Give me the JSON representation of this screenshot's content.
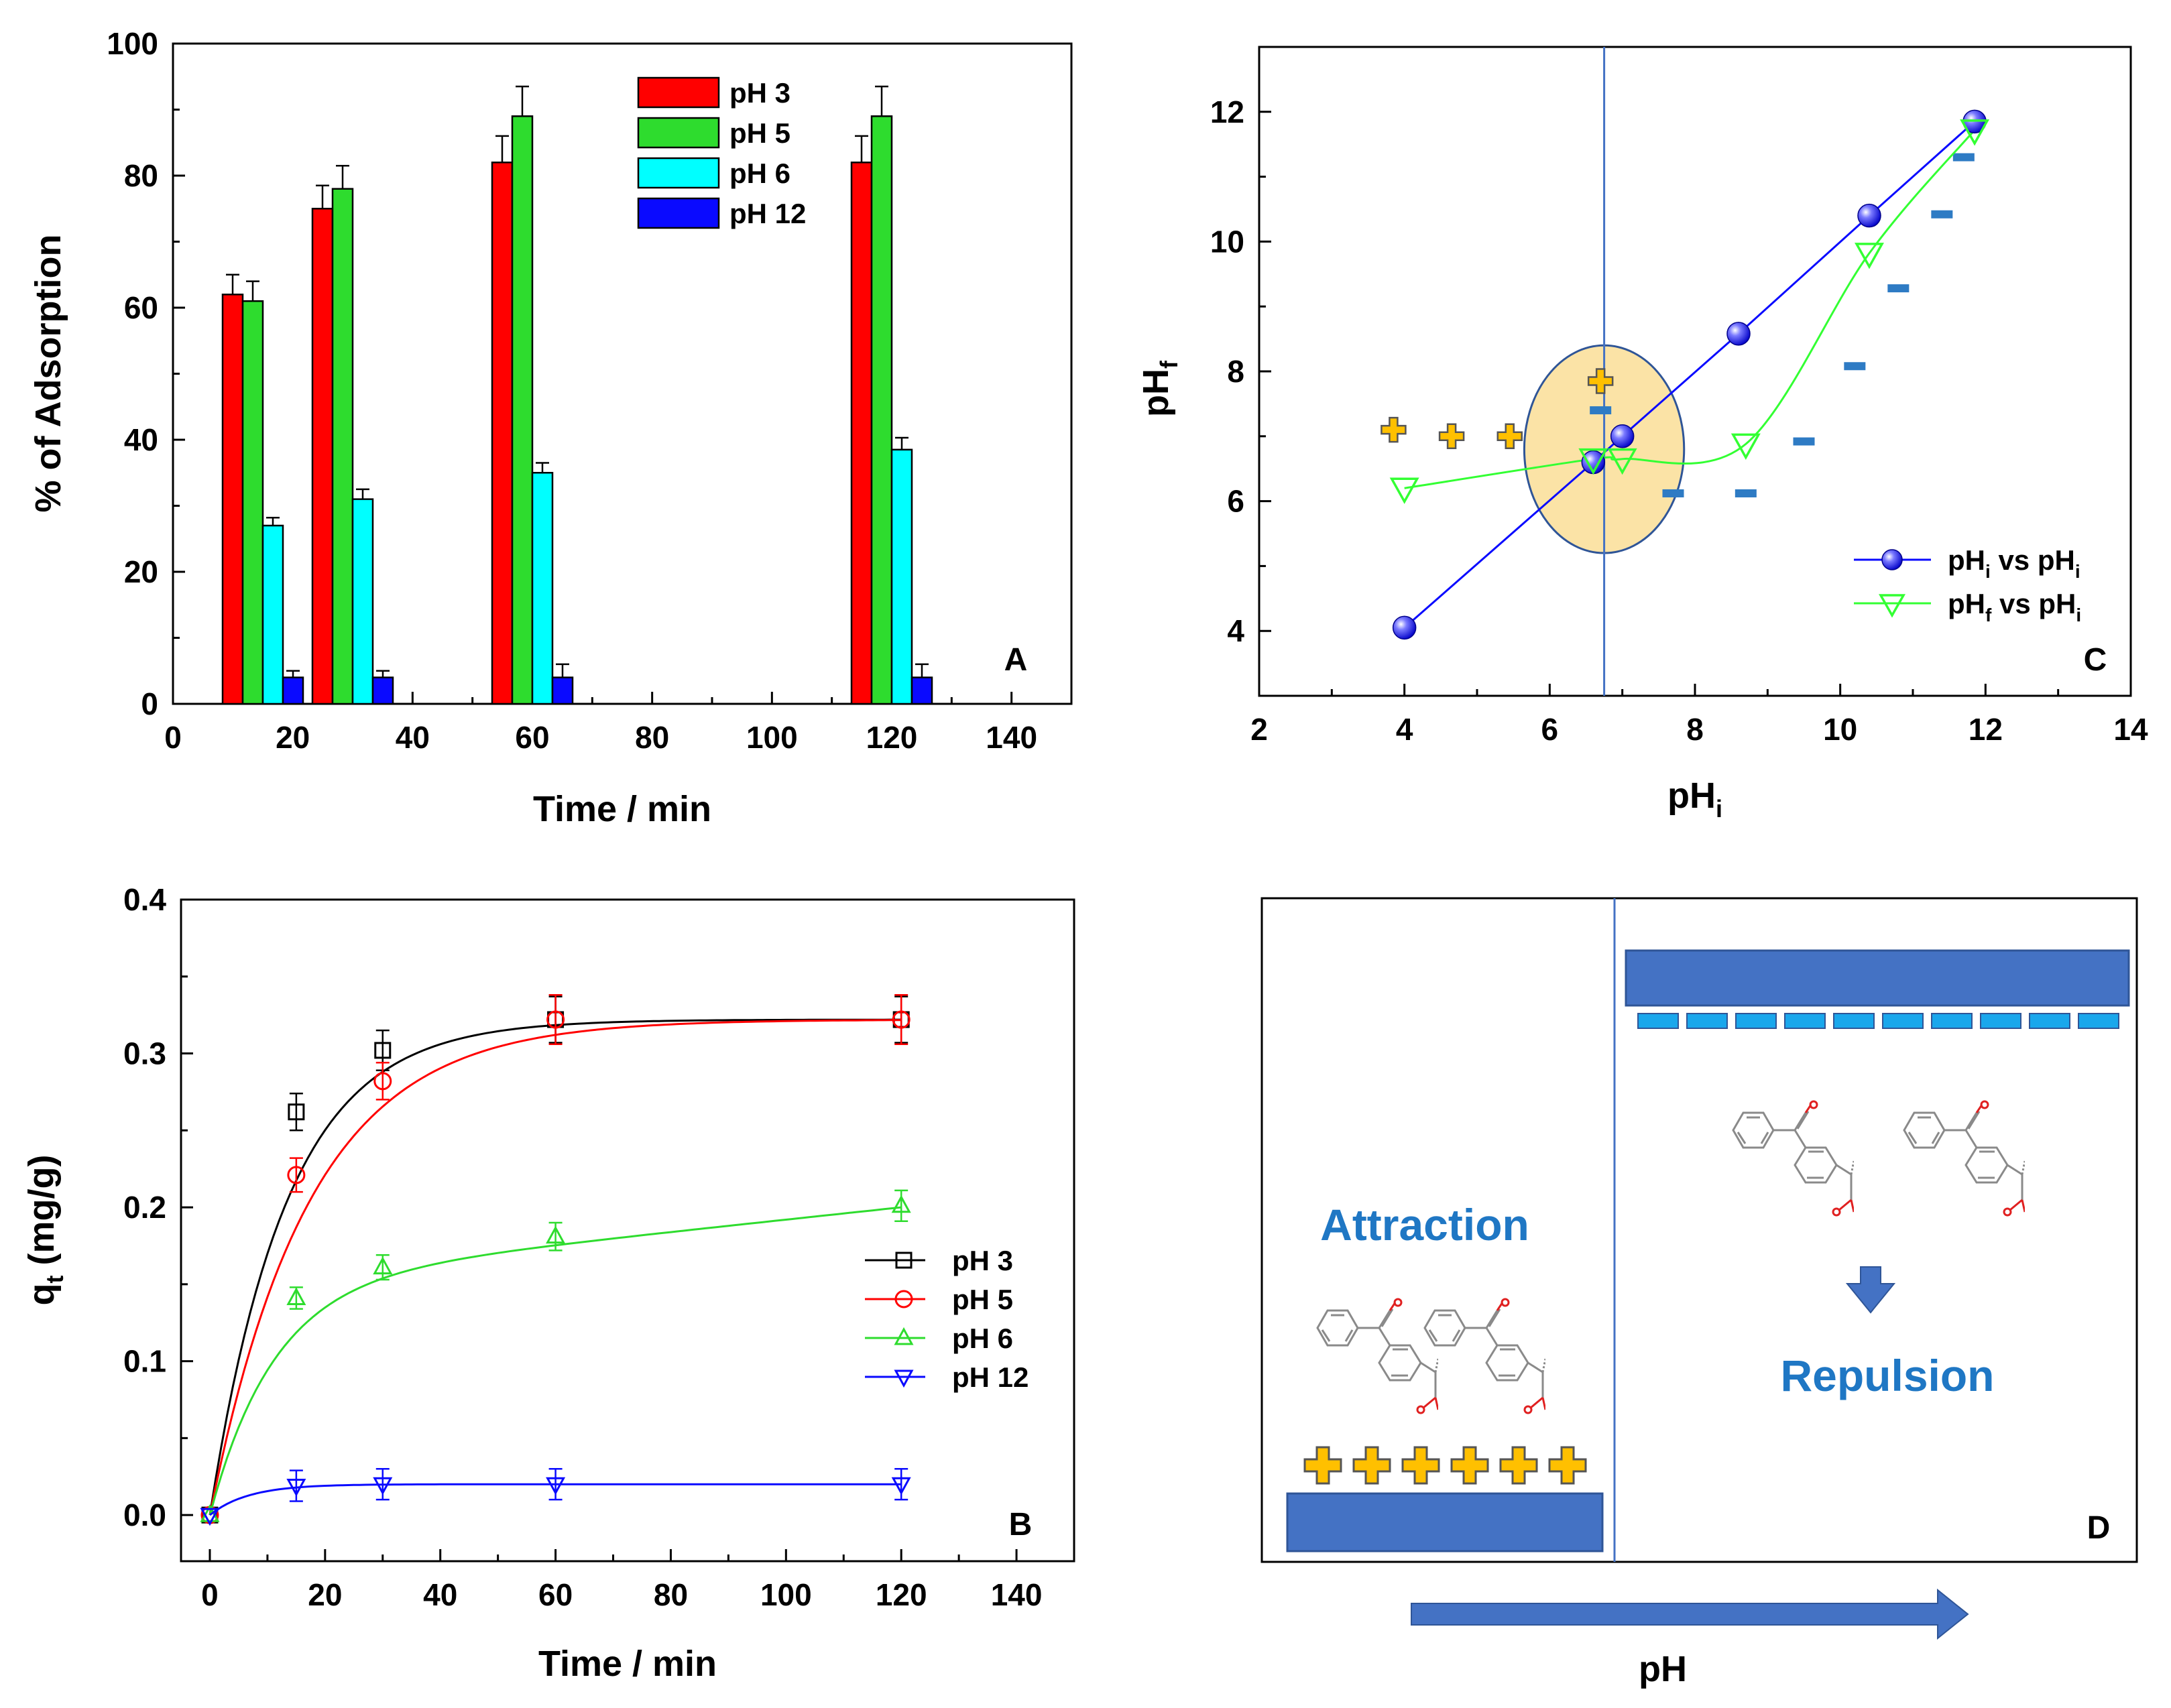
{
  "colors": {
    "red": "#ff0000",
    "green": "#2edc2e",
    "cyan": "#00ffff",
    "blue": "#0a0aff",
    "slate": "#4472c4",
    "orange": "#ffc000",
    "ellipse": "#fbe3a6",
    "text_blue": "#1f77c4",
    "curve_green": "#33ff33",
    "dash_blue": "#2e7bc4",
    "neg_cyan": "#1aa7ec"
  },
  "chart_data": [
    {
      "id": "A",
      "type": "bar",
      "panel_label": "A",
      "xlabel": "Time / min",
      "ylabel": "% of Adsorption",
      "xlim": [
        0,
        150
      ],
      "ylim": [
        0,
        100
      ],
      "xticks": [
        0,
        20,
        40,
        60,
        80,
        100,
        120,
        140
      ],
      "yticks": [
        0,
        20,
        40,
        60,
        80,
        100
      ],
      "legend_position": "top-right",
      "x": [
        15,
        30,
        60,
        120
      ],
      "series": [
        {
          "name": "pH   3",
          "color": "#ff0000",
          "values": [
            62,
            75,
            82,
            82
          ],
          "errors": [
            3,
            3.5,
            4,
            4
          ]
        },
        {
          "name": "pH   5",
          "color": "#2edc2e",
          "values": [
            61,
            78,
            89,
            89
          ],
          "errors": [
            3,
            3.5,
            4.5,
            4.5
          ]
        },
        {
          "name": "pH   6",
          "color": "#00ffff",
          "values": [
            27,
            31,
            35,
            38.5
          ],
          "errors": [
            1.2,
            1.5,
            1.5,
            1.8
          ]
        },
        {
          "name": "pH 12",
          "color": "#0a0aff",
          "values": [
            4,
            4,
            4,
            4
          ],
          "errors": [
            1,
            1,
            2,
            2
          ]
        }
      ]
    },
    {
      "id": "B",
      "type": "scatter",
      "panel_label": "B",
      "xlabel": "Time / min",
      "ylabel_main": "q",
      "ylabel_sub": "t",
      "ylabel_rest": " (mg/g)",
      "xlim": [
        -5,
        150
      ],
      "ylim": [
        -0.03,
        0.4
      ],
      "xticks": [
        0,
        20,
        40,
        60,
        80,
        100,
        120,
        140
      ],
      "yticks": [
        0.0,
        0.1,
        0.2,
        0.3,
        0.4
      ],
      "ytick_labels": [
        "0.0",
        "0.1",
        "0.2",
        "0.3",
        "0.4"
      ],
      "legend_position": "right",
      "series": [
        {
          "name": "pH   3",
          "marker": "square",
          "color": "#000000",
          "x": [
            0,
            15,
            30,
            60,
            120
          ],
          "y": [
            0,
            0.262,
            0.302,
            0.322,
            0.322
          ],
          "errors": [
            0,
            0.012,
            0.013,
            0.015,
            0.015
          ],
          "fit": {
            "model": "pfo",
            "qe": 0.322,
            "k": 0.075
          }
        },
        {
          "name": "pH   5",
          "marker": "circle",
          "color": "#ff0000",
          "x": [
            0,
            15,
            30,
            60,
            120
          ],
          "y": [
            0,
            0.221,
            0.282,
            0.322,
            0.322
          ],
          "errors": [
            0,
            0.011,
            0.012,
            0.016,
            0.016
          ],
          "fit": {
            "model": "pfo",
            "qe": 0.322,
            "k": 0.058
          }
        },
        {
          "name": "pH   6",
          "marker": "triangle-up",
          "color": "#2edc2e",
          "x": [
            0,
            15,
            30,
            60,
            120
          ],
          "y": [
            0,
            0.141,
            0.161,
            0.181,
            0.201
          ],
          "errors": [
            0,
            0.007,
            0.008,
            0.009,
            0.01
          ],
          "fit": {
            "model": "pfo_lin",
            "qe": 0.152,
            "k": 0.09,
            "slope": 0.0004
          }
        },
        {
          "name": "pH 12",
          "marker": "triangle-down",
          "color": "#0a0aff",
          "x": [
            0,
            15,
            30,
            60,
            120
          ],
          "y": [
            0,
            0.019,
            0.02,
            0.02,
            0.02
          ],
          "errors": [
            0,
            0.01,
            0.01,
            0.01,
            0.01
          ],
          "fit": {
            "model": "pfo",
            "qe": 0.02,
            "k": 0.15
          }
        }
      ]
    },
    {
      "id": "C",
      "type": "line",
      "panel_label": "C",
      "xlabel_main": "pH",
      "xlabel_sub": "i",
      "ylabel_main": "pH",
      "ylabel_sub": "f",
      "xlim": [
        2,
        14
      ],
      "ylim": [
        3,
        13
      ],
      "xticks": [
        2,
        4,
        6,
        8,
        10,
        12,
        14
      ],
      "yticks": [
        4,
        6,
        8,
        10,
        12
      ],
      "legend_position": "bottom-right",
      "pzc": 6.75,
      "pzc_region": {
        "center": [
          6.75,
          6.8
        ],
        "rx": 1.1,
        "ry": 1.6
      },
      "series": [
        {
          "name_main": "pH",
          "name_sub": "i",
          "name_mid": " vs pH",
          "name_sub2": "i",
          "marker": "sphere",
          "color": "#0a0aff",
          "x": [
            4.0,
            6.6,
            7.0,
            8.6,
            10.4,
            11.85
          ],
          "y": [
            4.05,
            6.6,
            7.0,
            8.58,
            10.4,
            11.85
          ]
        },
        {
          "name_main": "pH",
          "name_sub": "f",
          "name_mid": " vs pH",
          "name_sub2": "i",
          "marker": "triangle-down",
          "color": "#33ff33",
          "x": [
            4.0,
            6.6,
            7.0,
            8.7,
            10.4,
            11.85
          ],
          "y": [
            6.2,
            6.65,
            6.65,
            6.88,
            9.82,
            11.72
          ]
        }
      ],
      "positive_marks": [
        [
          3.85,
          7.1
        ],
        [
          4.65,
          7.0
        ],
        [
          5.45,
          7.0
        ],
        [
          6.7,
          7.85
        ]
      ],
      "negative_marks": [
        [
          6.7,
          7.4
        ],
        [
          7.7,
          6.12
        ],
        [
          8.7,
          6.12
        ],
        [
          9.5,
          6.92
        ],
        [
          10.2,
          8.08
        ],
        [
          10.8,
          9.28
        ],
        [
          11.4,
          10.42
        ],
        [
          11.7,
          11.3
        ]
      ]
    }
  ],
  "panel_d": {
    "label": "D",
    "attraction_label": "Attraction",
    "repulsion_label": "Repulsion",
    "ph_label": "pH"
  }
}
